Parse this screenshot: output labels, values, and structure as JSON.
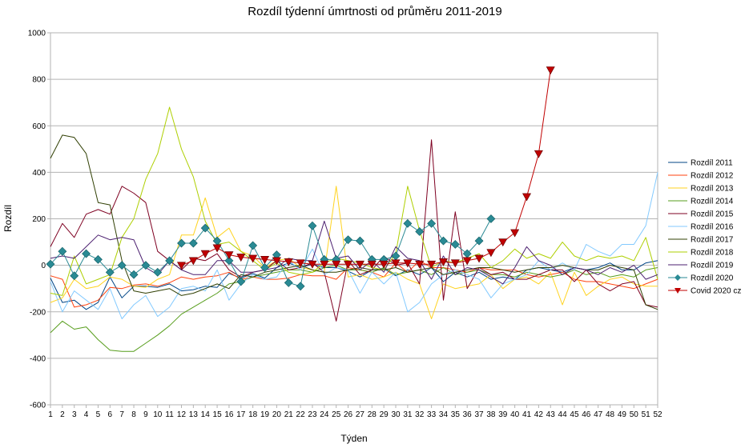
{
  "chart_data": {
    "type": "line",
    "title": "Rozdíl týdenní úmrtnosti od průměru 2011-2019",
    "xlabel": "Týden",
    "ylabel": "Rozdíl",
    "ylim": [
      -600,
      1000
    ],
    "yticks": [
      -600,
      -400,
      -200,
      0,
      200,
      400,
      600,
      800,
      1000
    ],
    "x": [
      1,
      2,
      3,
      4,
      5,
      6,
      7,
      8,
      9,
      10,
      11,
      12,
      13,
      14,
      15,
      16,
      17,
      18,
      19,
      20,
      21,
      22,
      23,
      24,
      25,
      26,
      27,
      28,
      29,
      30,
      31,
      32,
      33,
      34,
      35,
      36,
      37,
      38,
      39,
      40,
      41,
      42,
      43,
      44,
      45,
      46,
      47,
      48,
      49,
      50,
      51,
      52
    ],
    "grid": true,
    "legend": "right",
    "series": [
      {
        "name": "Rozdíl 2011",
        "color": "#004586",
        "marker": "none",
        "values": [
          -55,
          -160,
          -150,
          -190,
          -160,
          -50,
          -140,
          -90,
          -90,
          -95,
          -80,
          -110,
          -105,
          -90,
          -95,
          -35,
          -55,
          -35,
          -55,
          -10,
          10,
          -10,
          5,
          -10,
          -10,
          -25,
          -50,
          -20,
          -15,
          -45,
          -20,
          -40,
          -10,
          -70,
          -30,
          -50,
          -30,
          -60,
          -50,
          -60,
          -20,
          -10,
          -20,
          -30,
          -10,
          -20,
          -10,
          10,
          -20,
          -20,
          10,
          20
        ]
      },
      {
        "name": "Rozdíl 2012",
        "color": "#ff420e",
        "marker": "none",
        "values": [
          -45,
          -60,
          -180,
          -170,
          -150,
          -95,
          -100,
          -85,
          -80,
          -90,
          -75,
          -50,
          -60,
          -50,
          -45,
          -30,
          -60,
          -50,
          -60,
          -60,
          -55,
          -40,
          -45,
          -45,
          -60,
          -10,
          -20,
          -30,
          -50,
          10,
          -30,
          20,
          -10,
          -10,
          -20,
          -30,
          -10,
          -20,
          -20,
          -20,
          -40,
          -50,
          -40,
          -30,
          -60,
          -70,
          -70,
          -80,
          -90,
          -100,
          -80,
          -60
        ]
      },
      {
        "name": "Rozdíl 2013",
        "color": "#ffd320",
        "marker": "none",
        "values": [
          -160,
          -140,
          -60,
          -100,
          -90,
          -50,
          -60,
          -90,
          -95,
          -60,
          -40,
          130,
          130,
          290,
          120,
          160,
          60,
          40,
          -10,
          20,
          30,
          -10,
          -20,
          -30,
          340,
          -50,
          -40,
          -60,
          -50,
          -30,
          -60,
          -80,
          -230,
          -80,
          -100,
          -90,
          -80,
          -40,
          -100,
          -60,
          -50,
          -80,
          -30,
          -170,
          -30,
          -130,
          -90,
          -60,
          -50,
          -80,
          -90,
          -90
        ]
      },
      {
        "name": "Rozdíl 2014",
        "color": "#579d1c",
        "marker": "none",
        "values": [
          -290,
          -240,
          -275,
          -265,
          -320,
          -365,
          -370,
          -370,
          -335,
          -300,
          -260,
          -210,
          -180,
          -150,
          -120,
          -80,
          -70,
          -50,
          -40,
          -30,
          -20,
          -20,
          -30,
          -10,
          0,
          -20,
          -20,
          -30,
          -10,
          -40,
          -30,
          -20,
          -40,
          -10,
          -40,
          -30,
          -20,
          -40,
          -40,
          -50,
          -30,
          -40,
          -50,
          -40,
          -20,
          -40,
          -30,
          -50,
          -40,
          -50,
          -20,
          -10
        ]
      },
      {
        "name": "Rozdíl 2015",
        "color": "#7e0021",
        "marker": "none",
        "values": [
          80,
          180,
          120,
          220,
          240,
          220,
          340,
          310,
          270,
          60,
          20,
          -20,
          30,
          20,
          50,
          -20,
          -50,
          -30,
          -20,
          20,
          -20,
          -10,
          10,
          -30,
          -240,
          20,
          -40,
          -20,
          40,
          0,
          10,
          -80,
          540,
          -150,
          230,
          -100,
          -10,
          -40,
          -30,
          -60,
          -60,
          -40,
          -20,
          -20,
          -70,
          -20,
          -80,
          -110,
          -80,
          -70,
          -170,
          -180
        ]
      },
      {
        "name": "Rozdíl 2016",
        "color": "#83caff",
        "marker": "none",
        "values": [
          -70,
          -200,
          -110,
          -150,
          -190,
          -100,
          -230,
          -170,
          -130,
          -220,
          -180,
          -100,
          -90,
          -110,
          -20,
          -150,
          -80,
          -40,
          -60,
          -50,
          20,
          -20,
          70,
          -40,
          -10,
          -20,
          -120,
          -30,
          -80,
          -30,
          -200,
          -160,
          -80,
          -40,
          -20,
          -40,
          -60,
          -140,
          -80,
          -60,
          -40,
          20,
          -20,
          10,
          -20,
          90,
          60,
          40,
          90,
          90,
          170,
          400
        ]
      },
      {
        "name": "Rozdíl 2017",
        "color": "#314004",
        "marker": "none",
        "values": [
          460,
          560,
          550,
          480,
          270,
          260,
          20,
          -110,
          -120,
          -110,
          -100,
          -130,
          -120,
          -100,
          -80,
          -100,
          -40,
          -50,
          -30,
          -20,
          -10,
          0,
          -20,
          -30,
          -30,
          -20,
          -10,
          -20,
          -20,
          -10,
          -30,
          -20,
          -10,
          -40,
          -30,
          -20,
          -10,
          -10,
          -20,
          -30,
          -20,
          -10,
          -10,
          0,
          -10,
          -20,
          -20,
          0,
          -10,
          -20,
          -170,
          -190
        ]
      },
      {
        "name": "Rozdíl 2018",
        "color": "#aecf00",
        "marker": "none",
        "values": [
          -120,
          -130,
          40,
          -80,
          -60,
          -40,
          120,
          200,
          370,
          480,
          680,
          500,
          380,
          190,
          90,
          100,
          60,
          20,
          -20,
          10,
          -30,
          -40,
          -30,
          10,
          30,
          20,
          10,
          -10,
          -20,
          50,
          340,
          150,
          -10,
          20,
          10,
          30,
          50,
          -10,
          20,
          70,
          30,
          50,
          30,
          100,
          40,
          20,
          40,
          30,
          40,
          20,
          120,
          -60
        ]
      },
      {
        "name": "Rozdíl 2019",
        "color": "#4b1f6f",
        "marker": "none",
        "values": [
          30,
          40,
          30,
          80,
          130,
          110,
          120,
          110,
          -10,
          -40,
          20,
          -20,
          -40,
          -40,
          20,
          20,
          -30,
          -30,
          -20,
          -10,
          30,
          20,
          20,
          190,
          30,
          40,
          -20,
          20,
          -30,
          80,
          30,
          20,
          -60,
          40,
          -40,
          -10,
          -20,
          -50,
          -80,
          -10,
          80,
          20,
          0,
          -40,
          -10,
          -20,
          -40,
          -10,
          -30,
          0,
          -60,
          -40
        ]
      },
      {
        "name": "Rozdíl 2020",
        "color": "#2a8a94",
        "marker": "diamond",
        "values": [
          5,
          60,
          -45,
          50,
          25,
          -30,
          0,
          -40,
          0,
          -30,
          20,
          95,
          95,
          160,
          105,
          20,
          -70,
          85,
          -10,
          45,
          -75,
          -90,
          170,
          25,
          25,
          110,
          105,
          25,
          25,
          40,
          180,
          145,
          180,
          105,
          90,
          50,
          105,
          200,
          null,
          null,
          null,
          null,
          null,
          null,
          null,
          null,
          null,
          null,
          null,
          null,
          null,
          null
        ]
      },
      {
        "name": "Covid 2020 cz",
        "color": "#c00000",
        "marker": "triangle",
        "values": [
          null,
          null,
          null,
          null,
          null,
          null,
          null,
          null,
          null,
          null,
          null,
          0,
          20,
          50,
          75,
          45,
          35,
          30,
          25,
          20,
          15,
          10,
          5,
          5,
          5,
          5,
          5,
          5,
          5,
          10,
          10,
          5,
          5,
          15,
          10,
          20,
          30,
          55,
          100,
          140,
          295,
          480,
          840,
          null,
          null,
          null,
          null,
          null,
          null,
          null,
          null,
          null
        ]
      }
    ]
  }
}
